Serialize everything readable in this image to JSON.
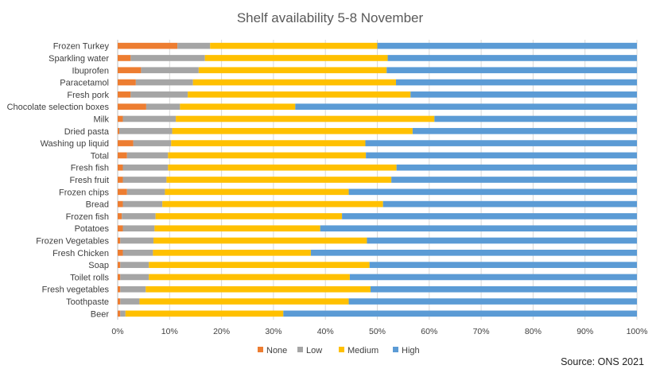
{
  "chart_data": {
    "type": "bar",
    "orientation": "horizontal",
    "stacked": true,
    "percent_stacked": true,
    "title": "Shelf availability 5-8 November",
    "source": "Source: ONS 2021",
    "legend_position": "bottom",
    "grid": true,
    "xlim": [
      0,
      100
    ],
    "x_ticks": [
      "0%",
      "10%",
      "20%",
      "30%",
      "40%",
      "50%",
      "60%",
      "70%",
      "80%",
      "90%",
      "100%"
    ],
    "categories": [
      "Frozen Turkey",
      "Sparkling water",
      "Ibuprofen",
      "Paracetamol",
      "Fresh pork",
      "Chocolate selection boxes",
      "Milk",
      "Dried pasta",
      "Washing up liquid",
      "Total",
      "Fresh fish",
      "Fresh fruit",
      "Frozen chips",
      "Bread",
      "Frozen fish",
      "Potatoes",
      "Frozen Vegetables",
      "Fresh Chicken",
      "Soap",
      "Toilet rolls",
      "Fresh vegetables",
      "Toothpaste",
      "Beer"
    ],
    "series": [
      {
        "name": "None",
        "color": "#ED7D31",
        "values": [
          11.5,
          2.5,
          4.5,
          3.5,
          2.5,
          5.5,
          1,
          0.3,
          3,
          1.8,
          1,
          1,
          1.8,
          1,
          0.8,
          1,
          0.5,
          1,
          0.5,
          0.5,
          0.5,
          0.5,
          0.5
        ]
      },
      {
        "name": "Low",
        "color": "#A5A5A5",
        "values": [
          6.3,
          14.3,
          11.1,
          11,
          11,
          6.5,
          10.2,
          10.2,
          7.3,
          7.9,
          8.7,
          8.4,
          7.3,
          7.6,
          6.5,
          6.1,
          6.4,
          5.8,
          5.5,
          5.5,
          4.9,
          3.7,
          1
        ]
      },
      {
        "name": "Medium",
        "color": "#FFC000",
        "values": [
          32.2,
          35.2,
          36.2,
          39.1,
          42.9,
          22.2,
          49.8,
          46.3,
          37.4,
          38.1,
          44,
          43.3,
          35.4,
          42.5,
          35.9,
          31.9,
          41.1,
          30.4,
          42.5,
          38.7,
          43.3,
          40.3,
          30.4
        ]
      },
      {
        "name": "High",
        "color": "#5B9BD5",
        "values": [
          50,
          48,
          48.2,
          46.4,
          43.6,
          65.8,
          39,
          43.2,
          52.3,
          52.2,
          46.3,
          47.3,
          55.5,
          48.9,
          56.8,
          61,
          52,
          62.8,
          51.5,
          55.3,
          51.3,
          55.5,
          68.1
        ]
      }
    ]
  }
}
